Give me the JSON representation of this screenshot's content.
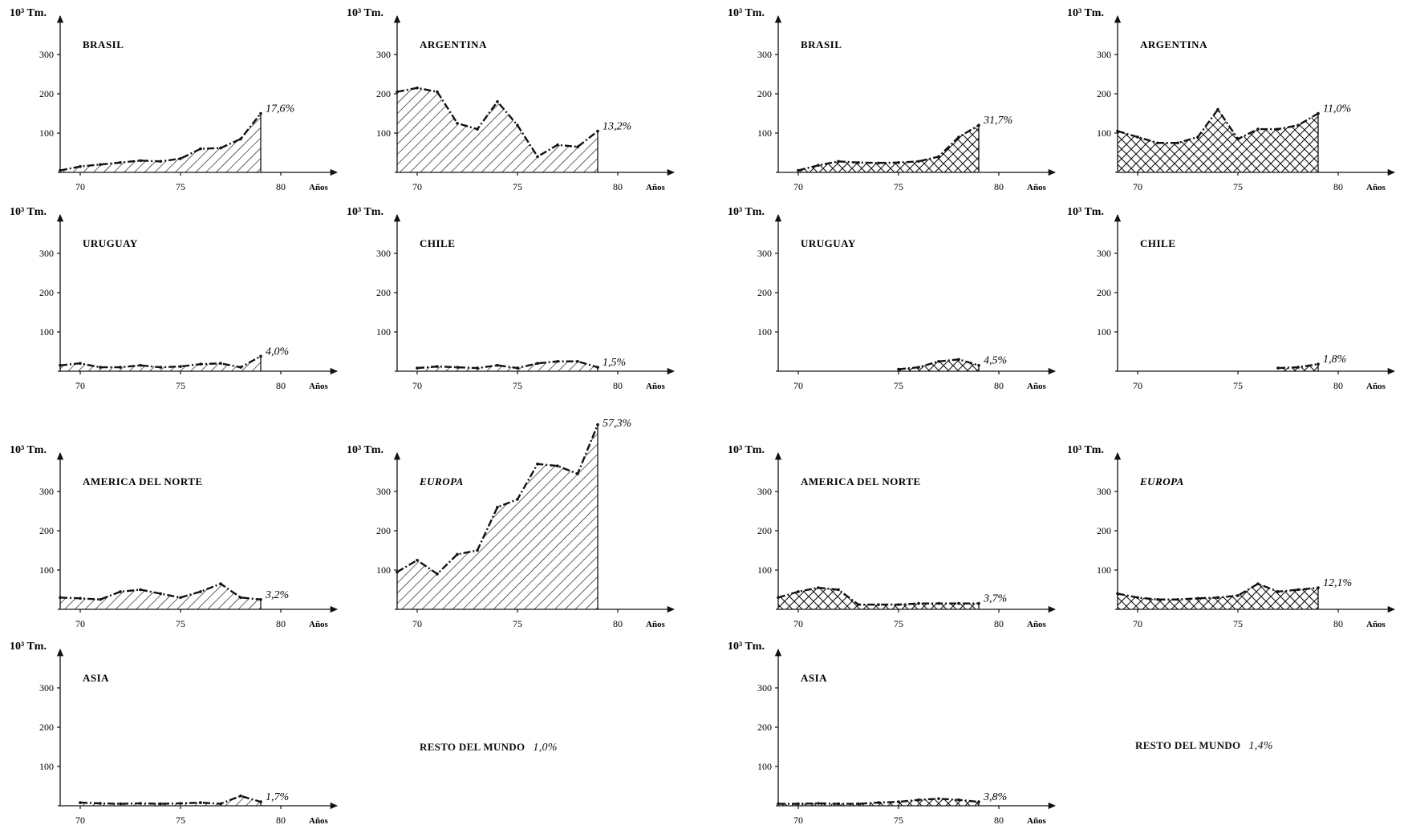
{
  "chart_data": [
    {
      "type": "area",
      "title": "BRASIL",
      "ylabel": "10³ Tm.",
      "xlabel": "Años",
      "pattern": "hatch",
      "end_label": "17,6%",
      "x": [
        69,
        70,
        71,
        72,
        73,
        74,
        75,
        76,
        77,
        78,
        79
      ],
      "y": [
        5,
        15,
        20,
        25,
        30,
        28,
        35,
        60,
        62,
        85,
        150
      ],
      "xlim": [
        69,
        84
      ],
      "ylim": [
        0,
        400
      ],
      "xticks": [
        "70",
        "75",
        "80"
      ],
      "yticks": [
        "100",
        "200",
        "300"
      ]
    },
    {
      "type": "area",
      "title": "ARGENTINA",
      "ylabel": "10³ Tm.",
      "xlabel": "Años",
      "pattern": "hatch",
      "end_label": "13,2%",
      "x": [
        69,
        70,
        71,
        72,
        73,
        74,
        75,
        76,
        77,
        78,
        79
      ],
      "y": [
        205,
        215,
        205,
        125,
        110,
        180,
        120,
        40,
        70,
        65,
        105
      ],
      "xlim": [
        69,
        84
      ],
      "ylim": [
        0,
        400
      ],
      "xticks": [
        "70",
        "75",
        "80"
      ],
      "yticks": [
        "100",
        "200",
        "300"
      ]
    },
    {
      "type": "area",
      "title": "BRASIL",
      "ylabel": "10³ Tm.",
      "xlabel": "Años",
      "pattern": "crosshatch",
      "end_label": "31,7%",
      "x": [
        70,
        71,
        72,
        73,
        74,
        75,
        76,
        77,
        78,
        79
      ],
      "y": [
        5,
        18,
        28,
        25,
        24,
        25,
        28,
        40,
        90,
        120
      ],
      "xlim": [
        69,
        84
      ],
      "ylim": [
        0,
        400
      ],
      "xticks": [
        "70",
        "75",
        "80"
      ],
      "yticks": [
        "100",
        "200",
        "300"
      ]
    },
    {
      "type": "area",
      "title": "ARGENTINA",
      "ylabel": "10³ Tm.",
      "xlabel": "Años",
      "pattern": "crosshatch",
      "end_label": "11,0%",
      "x": [
        69,
        70,
        71,
        72,
        73,
        74,
        75,
        76,
        77,
        78,
        79
      ],
      "y": [
        105,
        90,
        75,
        75,
        90,
        160,
        85,
        110,
        110,
        120,
        150
      ],
      "xlim": [
        69,
        84
      ],
      "ylim": [
        0,
        400
      ],
      "xticks": [
        "70",
        "75",
        "80"
      ],
      "yticks": [
        "100",
        "200",
        "300"
      ]
    },
    {
      "type": "area",
      "title": "URUGUAY",
      "ylabel": "10³ Tm.",
      "xlabel": "Años",
      "pattern": "hatch",
      "end_label": "4,0%",
      "x": [
        69,
        70,
        71,
        72,
        73,
        74,
        75,
        76,
        77,
        78,
        79
      ],
      "y": [
        15,
        20,
        10,
        10,
        15,
        10,
        12,
        18,
        20,
        10,
        38
      ],
      "xlim": [
        69,
        84
      ],
      "ylim": [
        0,
        400
      ],
      "xticks": [
        "70",
        "75",
        "80"
      ],
      "yticks": [
        "100",
        "200",
        "300"
      ]
    },
    {
      "type": "area",
      "title": "CHILE",
      "ylabel": "10³ Tm.",
      "xlabel": "Años",
      "pattern": "hatch",
      "end_label": "1,5%",
      "x": [
        70,
        71,
        72,
        73,
        74,
        75,
        76,
        77,
        78,
        79
      ],
      "y": [
        8,
        12,
        10,
        8,
        15,
        8,
        20,
        25,
        25,
        10
      ],
      "xlim": [
        69,
        84
      ],
      "ylim": [
        0,
        400
      ],
      "xticks": [
        "70",
        "75",
        "80"
      ],
      "yticks": [
        "100",
        "200",
        "300"
      ]
    },
    {
      "type": "area",
      "title": "URUGUAY",
      "ylabel": "10³ Tm.",
      "xlabel": "Años",
      "pattern": "crosshatch",
      "end_label": "4,5%",
      "x": [
        75,
        76,
        77,
        78,
        79
      ],
      "y": [
        5,
        10,
        25,
        30,
        15
      ],
      "xlim": [
        69,
        84
      ],
      "ylim": [
        0,
        400
      ],
      "xticks": [
        "70",
        "75",
        "80"
      ],
      "yticks": [
        "100",
        "200",
        "300"
      ]
    },
    {
      "type": "area",
      "title": "CHILE",
      "ylabel": "10³ Tm.",
      "xlabel": "Años",
      "pattern": "crosshatch",
      "end_label": "1,8%",
      "x": [
        77,
        78,
        79
      ],
      "y": [
        8,
        10,
        18
      ],
      "xlim": [
        69,
        84
      ],
      "ylim": [
        0,
        400
      ],
      "xticks": [
        "70",
        "75",
        "80"
      ],
      "yticks": [
        "100",
        "200",
        "300"
      ]
    },
    {
      "type": "area",
      "title": "AMERICA DEL NORTE",
      "ylabel": "10³ Tm.",
      "xlabel": "Años",
      "pattern": "hatch",
      "end_label": "3,2%",
      "x": [
        69,
        70,
        71,
        72,
        73,
        74,
        75,
        76,
        77,
        78,
        79
      ],
      "y": [
        30,
        28,
        25,
        45,
        50,
        40,
        30,
        45,
        65,
        30,
        25
      ],
      "xlim": [
        69,
        84
      ],
      "ylim": [
        0,
        400
      ],
      "xticks": [
        "70",
        "75",
        "80"
      ],
      "yticks": [
        "100",
        "200",
        "300"
      ]
    },
    {
      "type": "area",
      "title": "EUROPA",
      "ylabel": "10³ Tm.",
      "xlabel": "Años",
      "pattern": "hatch",
      "end_label": "57,3%",
      "x": [
        69,
        70,
        71,
        72,
        73,
        74,
        75,
        76,
        77,
        78,
        79
      ],
      "y": [
        95,
        125,
        90,
        140,
        150,
        260,
        280,
        370,
        365,
        345,
        470
      ],
      "xlim": [
        69,
        84
      ],
      "ylim": [
        0,
        400
      ],
      "xticks": [
        "70",
        "75",
        "80"
      ],
      "yticks": [
        "100",
        "200",
        "300"
      ]
    },
    {
      "type": "area",
      "title": "AMERICA DEL NORTE",
      "ylabel": "10³ Tm.",
      "xlabel": "Años",
      "pattern": "crosshatch",
      "end_label": "3,7%",
      "x": [
        69,
        70,
        71,
        72,
        73,
        74,
        75,
        76,
        77,
        78,
        79
      ],
      "y": [
        30,
        45,
        55,
        50,
        12,
        12,
        12,
        15,
        15,
        15,
        15
      ],
      "xlim": [
        69,
        84
      ],
      "ylim": [
        0,
        400
      ],
      "xticks": [
        "70",
        "75",
        "80"
      ],
      "yticks": [
        "100",
        "200",
        "300"
      ]
    },
    {
      "type": "area",
      "title": "EUROPA",
      "ylabel": "10³ Tm.",
      "xlabel": "Años",
      "pattern": "crosshatch",
      "end_label": "12,1%",
      "x": [
        69,
        70,
        71,
        72,
        73,
        74,
        75,
        76,
        77,
        78,
        79
      ],
      "y": [
        40,
        30,
        25,
        25,
        28,
        30,
        35,
        65,
        45,
        50,
        55
      ],
      "xlim": [
        69,
        84
      ],
      "ylim": [
        0,
        400
      ],
      "xticks": [
        "70",
        "75",
        "80"
      ],
      "yticks": [
        "100",
        "200",
        "300"
      ]
    },
    {
      "type": "area",
      "title": "ASIA",
      "ylabel": "10³ Tm.",
      "xlabel": "Años",
      "pattern": "hatch",
      "end_label": "1,7%",
      "x": [
        70,
        71,
        72,
        73,
        74,
        75,
        76,
        77,
        78,
        79
      ],
      "y": [
        8,
        6,
        5,
        6,
        5,
        6,
        8,
        5,
        25,
        10
      ],
      "xlim": [
        69,
        84
      ],
      "ylim": [
        0,
        400
      ],
      "xticks": [
        "70",
        "75",
        "80"
      ],
      "yticks": [
        "100",
        "200",
        "300"
      ]
    },
    {
      "type": "area",
      "title": "ASIA",
      "ylabel": "10³ Tm.",
      "xlabel": "Años",
      "pattern": "crosshatch",
      "end_label": "3,8%",
      "x": [
        69,
        70,
        71,
        72,
        73,
        74,
        75,
        76,
        77,
        78,
        79
      ],
      "y": [
        5,
        5,
        6,
        5,
        5,
        8,
        10,
        15,
        18,
        15,
        10
      ],
      "xlim": [
        69,
        84
      ],
      "ylim": [
        0,
        400
      ],
      "xticks": [
        "70",
        "75",
        "80"
      ],
      "yticks": [
        "100",
        "200",
        "300"
      ]
    }
  ],
  "notes": [
    {
      "label": "RESTO DEL MUNDO",
      "value": "1,0%"
    },
    {
      "label": "RESTO DEL MUNDO",
      "value": 1.4,
      "value_text": "1,4%"
    }
  ]
}
